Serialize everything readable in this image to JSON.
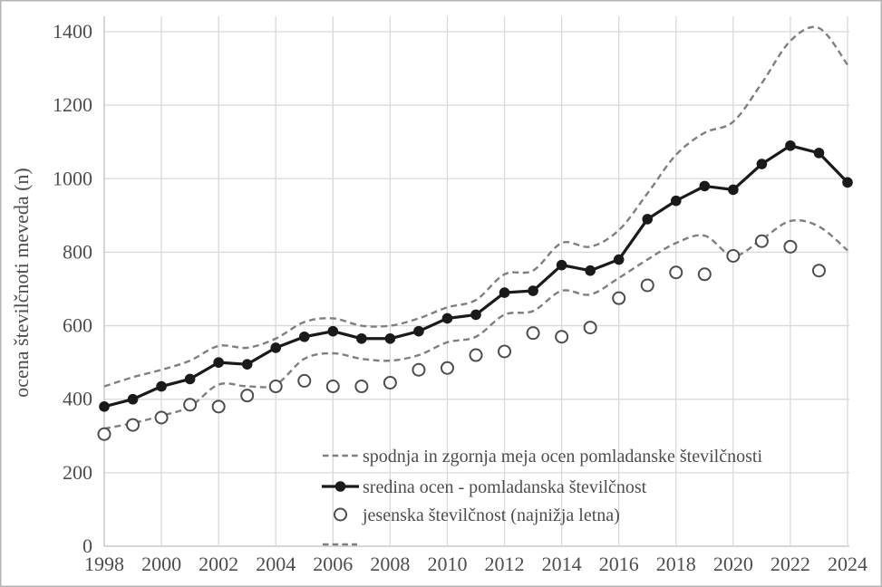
{
  "chart_data": {
    "type": "line",
    "title": "",
    "xlabel": "",
    "ylabel": "ocena številčnoti meveda (n)",
    "ylim": [
      0,
      1400
    ],
    "ytick_step": 200,
    "yticks": [
      0,
      200,
      400,
      600,
      800,
      1000,
      1200,
      1400
    ],
    "xticks": [
      1998,
      2000,
      2002,
      2004,
      2006,
      2008,
      2010,
      2012,
      2014,
      2016,
      2018,
      2020,
      2022,
      2024
    ],
    "years": [
      1998,
      1999,
      2000,
      2001,
      2002,
      2003,
      2004,
      2005,
      2006,
      2007,
      2008,
      2009,
      2010,
      2011,
      2012,
      2013,
      2014,
      2015,
      2016,
      2017,
      2018,
      2019,
      2020,
      2021,
      2022,
      2023,
      2024
    ],
    "grid": true,
    "colors": {
      "dashed_bound": "#7f7f7f",
      "solid_mid": "#1a1a1a",
      "open_marker": "#4d4d4d",
      "gridline": "#d9d9d9",
      "axis_line": "#bfbfbf",
      "text": "#4d4d4d",
      "border": "#b3b3b3"
    },
    "series": [
      {
        "name": "zgornja meja ocen pomladanske številčnosti",
        "role": "upper-bound",
        "style": "dashed",
        "values": [
          435,
          460,
          480,
          505,
          545,
          540,
          565,
          610,
          620,
          600,
          600,
          620,
          650,
          670,
          740,
          750,
          825,
          815,
          860,
          960,
          1065,
          1125,
          1155,
          1260,
          1375,
          1410,
          1310
        ]
      },
      {
        "name": "spodnja meja ocen pomladanske številčnosti",
        "role": "lower-bound",
        "style": "dashed",
        "values": [
          320,
          335,
          355,
          380,
          440,
          435,
          440,
          510,
          525,
          510,
          505,
          520,
          555,
          570,
          630,
          640,
          695,
          685,
          730,
          780,
          825,
          845,
          790,
          835,
          885,
          870,
          805
        ]
      },
      {
        "name": "sredina ocen - pomladanska številčnost",
        "role": "mid-estimate",
        "style": "solid-filled-circles",
        "values": [
          380,
          400,
          435,
          455,
          500,
          495,
          540,
          570,
          585,
          565,
          565,
          585,
          620,
          630,
          690,
          695,
          765,
          750,
          780,
          890,
          940,
          980,
          970,
          1040,
          1090,
          1070,
          990
        ]
      },
      {
        "name": "jesenska številčnost (najnižja letna)",
        "role": "autumn-count",
        "style": "open-circles",
        "values": [
          305,
          330,
          350,
          385,
          380,
          410,
          435,
          450,
          435,
          435,
          445,
          480,
          485,
          520,
          530,
          580,
          570,
          595,
          675,
          710,
          745,
          740,
          790,
          830,
          815,
          750,
          null
        ]
      }
    ],
    "legend": {
      "position": "inside-bottom-center",
      "entries": [
        {
          "marker": "dashed-line",
          "label": "spodnja in zgornja meja ocen pomladanske številčnosti"
        },
        {
          "marker": "solid-line-filled-circle",
          "label": "sredina ocen - pomladanska številčnost"
        },
        {
          "marker": "open-circle",
          "label": "jesenska številčnost (najnižja letna)"
        }
      ],
      "partial_fourth_entry_dash": true
    }
  }
}
